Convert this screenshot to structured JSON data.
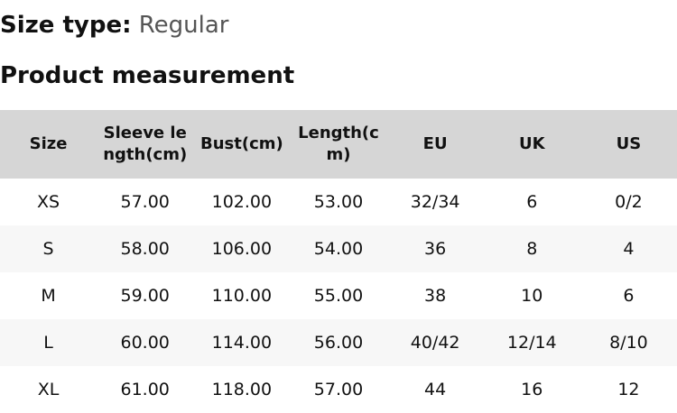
{
  "size_type": {
    "label": "Size type:",
    "value": "Regular"
  },
  "section_title": "Product measurement",
  "table": {
    "headers": [
      "Size",
      "Sleeve length(cm)",
      "Bust(cm)",
      "Length(cm)",
      "EU",
      "UK",
      "US"
    ],
    "rows": [
      [
        "XS",
        "57.00",
        "102.00",
        "53.00",
        "32/34",
        "6",
        "0/2"
      ],
      [
        "S",
        "58.00",
        "106.00",
        "54.00",
        "36",
        "8",
        "4"
      ],
      [
        "M",
        "59.00",
        "110.00",
        "55.00",
        "38",
        "10",
        "6"
      ],
      [
        "L",
        "60.00",
        "114.00",
        "56.00",
        "40/42",
        "12/14",
        "8/10"
      ],
      [
        "XL",
        "61.00",
        "118.00",
        "57.00",
        "44",
        "16",
        "12"
      ]
    ]
  }
}
